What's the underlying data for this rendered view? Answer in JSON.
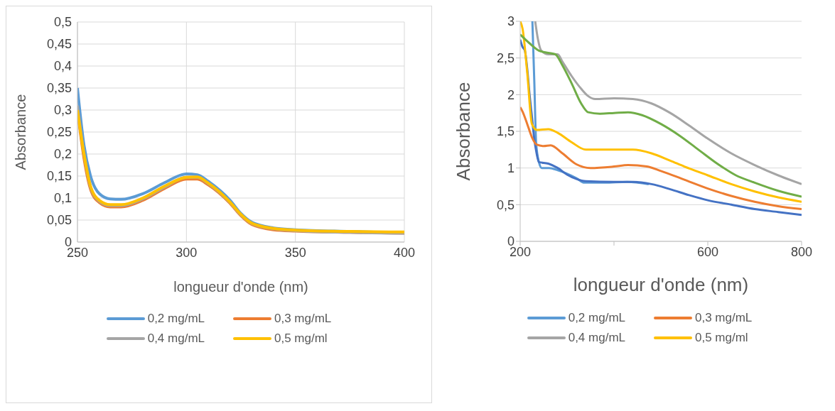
{
  "chart_data": [
    {
      "type": "line",
      "xlabel": "longueur d'onde (nm)",
      "ylabel": "Absorbance",
      "xlim": [
        250,
        400
      ],
      "xticks": [
        250,
        300,
        350,
        400
      ],
      "ylim": [
        0,
        0.5
      ],
      "yticks": [
        {
          "value": 0,
          "label": "0"
        },
        {
          "value": 0.05,
          "label": "0,05"
        },
        {
          "value": 0.1,
          "label": "0,1"
        },
        {
          "value": 0.15,
          "label": "0,15"
        },
        {
          "value": 0.2,
          "label": "0,2"
        },
        {
          "value": 0.25,
          "label": "0,25"
        },
        {
          "value": 0.3,
          "label": "0,3"
        },
        {
          "value": 0.35,
          "label": "0,35"
        },
        {
          "value": 0.4,
          "label": "0,4"
        },
        {
          "value": 0.45,
          "label": "0,45"
        },
        {
          "value": 0.5,
          "label": "0,5"
        }
      ],
      "grid": true,
      "legend": "bottom",
      "marker": "none",
      "line_style": "solid",
      "series": [
        {
          "name": "0,2 mg/mL",
          "color": "#5b9bd5",
          "x": [
            250,
            253,
            256,
            260,
            265,
            270,
            280,
            290,
            300,
            305,
            310,
            320,
            325,
            330,
            340,
            350,
            375,
            400
          ],
          "values": [
            0.35,
            0.22,
            0.15,
            0.11,
            0.098,
            0.097,
            0.11,
            0.135,
            0.155,
            0.153,
            0.138,
            0.095,
            0.065,
            0.045,
            0.032,
            0.028,
            0.024,
            0.021
          ]
        },
        {
          "name": "0,3 mg/mL",
          "color": "#ed7d31",
          "x": [
            250,
            253,
            256,
            260,
            265,
            270,
            280,
            290,
            300,
            305,
            310,
            320,
            325,
            330,
            340,
            350,
            375,
            400
          ],
          "values": [
            0.3,
            0.19,
            0.12,
            0.09,
            0.08,
            0.08,
            0.095,
            0.122,
            0.143,
            0.143,
            0.13,
            0.088,
            0.06,
            0.04,
            0.028,
            0.025,
            0.022,
            0.02
          ]
        },
        {
          "name": "0,4 mg/mL",
          "color": "#a5a5a5",
          "x": [
            250,
            253,
            256,
            260,
            265,
            270,
            280,
            290,
            300,
            305,
            310,
            320,
            325,
            330,
            340,
            350,
            375,
            400
          ],
          "values": [
            0.31,
            0.2,
            0.125,
            0.093,
            0.083,
            0.083,
            0.098,
            0.125,
            0.147,
            0.147,
            0.133,
            0.09,
            0.062,
            0.042,
            0.03,
            0.026,
            0.022,
            0.02
          ]
        },
        {
          "name": "0,5 mg/ml",
          "color": "#ffc000",
          "x": [
            250,
            253,
            256,
            260,
            265,
            270,
            280,
            290,
            300,
            305,
            310,
            320,
            325,
            330,
            340,
            350,
            375,
            400
          ],
          "values": [
            0.3,
            0.2,
            0.127,
            0.095,
            0.085,
            0.085,
            0.1,
            0.127,
            0.147,
            0.148,
            0.134,
            0.091,
            0.063,
            0.043,
            0.031,
            0.027,
            0.024,
            0.023
          ]
        }
      ]
    },
    {
      "type": "line",
      "xlabel": "longueur d'onde (nm)",
      "ylabel": "Absorbance",
      "xlim": [
        200,
        800
      ],
      "xticks": [
        200,
        {
          "value": 400,
          "label": null
        },
        600,
        800
      ],
      "ylim": [
        0,
        3
      ],
      "yticks": [
        {
          "value": 0,
          "label": "0"
        },
        {
          "value": 0.5,
          "label": "0,5"
        },
        {
          "value": 1,
          "label": "1"
        },
        {
          "value": 1.5,
          "label": "1,5"
        },
        {
          "value": 2,
          "label": "2"
        },
        {
          "value": 2.5,
          "label": "2,5"
        },
        {
          "value": 3,
          "label": "3"
        }
      ],
      "grid": "y",
      "legend": "bottom",
      "marker": "none",
      "line_style": "solid",
      "series": [
        {
          "name": "0,2 mg/mL",
          "color": "#5b9bd5",
          "x": [
            226,
            230,
            234,
            240,
            246,
            262,
            280,
            297,
            320,
            337,
            380,
            428,
            474
          ],
          "values": [
            3,
            2.2,
            1.34,
            1.08,
            1.0,
            1.0,
            0.97,
            0.93,
            0.86,
            0.8,
            0.8,
            0.81,
            0.78
          ]
        },
        {
          "color": "#4472c4",
          "x": [
            200,
            205,
            210,
            215,
            220,
            225,
            230,
            235,
            240,
            260,
            280,
            300,
            320,
            340,
            400,
            440,
            480,
            520,
            560,
            600,
            650,
            700,
            750,
            800
          ],
          "values": [
            2.75,
            2.65,
            2.6,
            2.35,
            2.0,
            1.7,
            1.4,
            1.2,
            1.08,
            1.06,
            1.0,
            0.91,
            0.85,
            0.82,
            0.81,
            0.81,
            0.78,
            0.71,
            0.63,
            0.56,
            0.5,
            0.44,
            0.4,
            0.36
          ]
        },
        {
          "name": "0,3 mg/mL",
          "color": "#ed7d31",
          "x": [
            200,
            205,
            215,
            225,
            235,
            250,
            265,
            290,
            320,
            350,
            400,
            430,
            470,
            500,
            550,
            600,
            650,
            700,
            750,
            800
          ],
          "values": [
            1.83,
            1.77,
            1.6,
            1.42,
            1.32,
            1.3,
            1.31,
            1.2,
            1.05,
            1.0,
            1.02,
            1.04,
            1.02,
            0.96,
            0.84,
            0.72,
            0.62,
            0.54,
            0.48,
            0.44
          ]
        },
        {
          "name": "0,4 mg/mL",
          "color": "#a5a5a5",
          "x": [
            232,
            238,
            245,
            260,
            280,
            290,
            310,
            330,
            345,
            360,
            400,
            440,
            480,
            520,
            560,
            600,
            650,
            700,
            750,
            800
          ],
          "values": [
            3,
            2.75,
            2.6,
            2.55,
            2.55,
            2.45,
            2.25,
            2.08,
            1.98,
            1.94,
            1.95,
            1.94,
            1.88,
            1.75,
            1.58,
            1.4,
            1.2,
            1.04,
            0.9,
            0.78
          ]
        },
        {
          "name": "0,5 mg/ml",
          "color": "#ffc000",
          "x": [
            200,
            205,
            215,
            225,
            235,
            260,
            280,
            310,
            340,
            400,
            440,
            480,
            520,
            550,
            600,
            650,
            700,
            750,
            800
          ],
          "values": [
            3,
            2.9,
            2.3,
            1.6,
            1.52,
            1.53,
            1.48,
            1.35,
            1.25,
            1.25,
            1.25,
            1.2,
            1.1,
            1.02,
            0.9,
            0.78,
            0.68,
            0.6,
            0.54
          ]
        },
        {
          "color": "#70ad47",
          "x": [
            200,
            220,
            240,
            260,
            275,
            290,
            310,
            330,
            345,
            370,
            400,
            430,
            460,
            500,
            540,
            580,
            620,
            660,
            700,
            750,
            800
          ],
          "values": [
            2.82,
            2.7,
            2.6,
            2.57,
            2.55,
            2.4,
            2.15,
            1.88,
            1.76,
            1.74,
            1.75,
            1.76,
            1.72,
            1.6,
            1.44,
            1.25,
            1.06,
            0.9,
            0.8,
            0.69,
            0.61
          ]
        }
      ]
    }
  ]
}
